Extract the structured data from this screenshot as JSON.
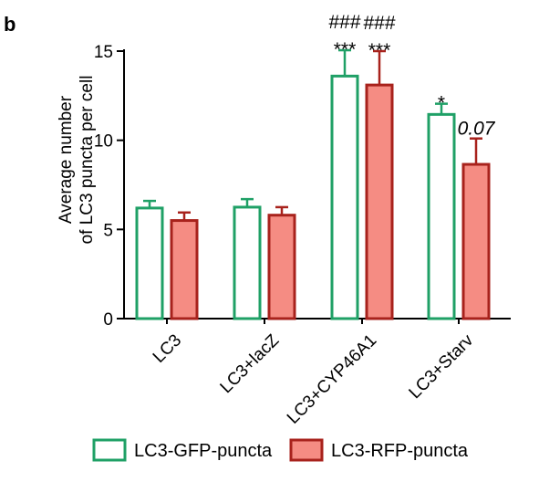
{
  "panel_label": "b",
  "chart_data": {
    "type": "bar",
    "title": "",
    "xlabel": "",
    "ylabel_lines": [
      "Average number",
      "of LC3 puncta per cell"
    ],
    "ylim": [
      0,
      15
    ],
    "yticks": [
      0,
      5,
      10,
      15
    ],
    "grid": false,
    "legend_position": "bottom",
    "categories": [
      "LC3",
      "LC3+lacZ",
      "LC3+CYP46A1",
      "LC3+Starv"
    ],
    "series": [
      {
        "name": "LC3-GFP-puncta",
        "values": [
          6.2,
          6.25,
          13.6,
          11.45
        ],
        "errors": [
          0.4,
          0.45,
          1.45,
          0.6
        ],
        "edge_color": "#1fa066",
        "fill_color": "#ffffff"
      },
      {
        "name": "LC3-RFP-puncta",
        "values": [
          5.5,
          5.8,
          13.1,
          8.65
        ],
        "errors": [
          0.45,
          0.45,
          1.9,
          1.45
        ],
        "edge_color": "#a8221c",
        "fill_color": "#f58c83"
      }
    ],
    "annotations": [
      {
        "category": 2,
        "series": 0,
        "lines": [
          "###",
          "***"
        ],
        "italic": false
      },
      {
        "category": 2,
        "series": 1,
        "lines": [
          "###",
          "***"
        ],
        "italic": false
      },
      {
        "category": 3,
        "series": 0,
        "lines": [
          "*"
        ],
        "italic": false
      },
      {
        "category": 3,
        "series": 1,
        "lines": [
          "0.07"
        ],
        "italic": true
      }
    ]
  }
}
